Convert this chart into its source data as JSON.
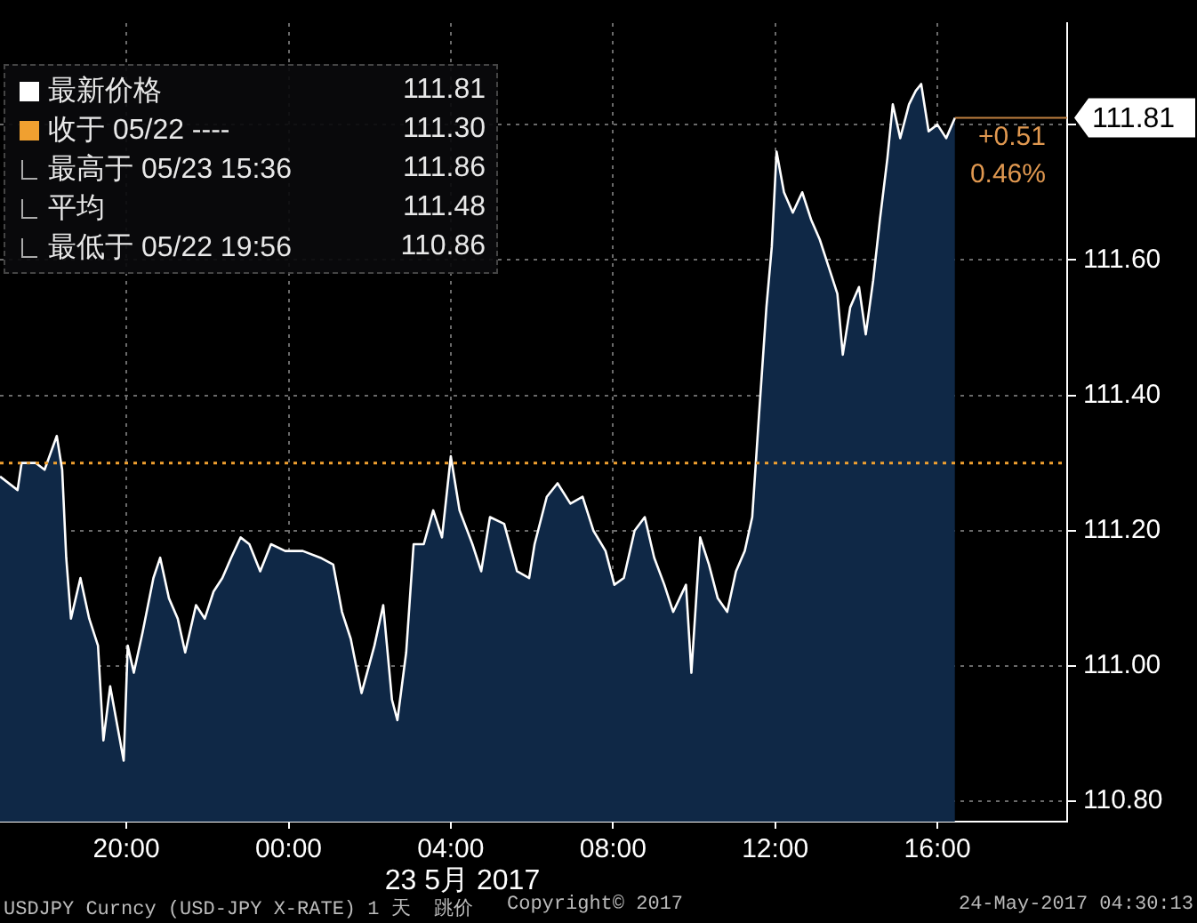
{
  "chart_data": {
    "type": "area",
    "legend": "top left",
    "grid": true,
    "xlim": [
      "2017-05-22T16:53",
      "2017-05-23T19:12"
    ],
    "ylim": [
      110.77,
      111.95
    ],
    "xticks": [
      {
        "value": "2017-05-22T20:00",
        "label": "20:00"
      },
      {
        "value": "2017-05-23T00:00",
        "label": "00:00"
      },
      {
        "value": "2017-05-23T04:00",
        "label": "04:00"
      },
      {
        "value": "2017-05-23T08:00",
        "label": "08:00"
      },
      {
        "value": "2017-05-23T12:00",
        "label": "12:00"
      },
      {
        "value": "2017-05-23T16:00",
        "label": "16:00"
      }
    ],
    "yticks": [
      {
        "value": 110.8,
        "label": "110.80"
      },
      {
        "value": 111,
        "label": "111.00"
      },
      {
        "value": 111.2,
        "label": "111.20"
      },
      {
        "value": 111.4,
        "label": "111.40"
      },
      {
        "value": 111.6,
        "label": "111.60"
      },
      {
        "value": 111.8,
        "label": null
      }
    ],
    "ref_lines": [
      {
        "axis": "y",
        "value": 111.3,
        "label": "收于 05/22 ----",
        "color": "#f0a030",
        "line_style": "dotted"
      }
    ],
    "annotations": [
      "111.81",
      "111.30",
      "最高于 05/23 15:36",
      "111.86",
      "平均",
      "111.48",
      "最低于 05/22 19:56",
      "110.86",
      "+0.51",
      "0.46%",
      "111.81",
      "23 5月 2017",
      "USDJPY Curncy (USD-JPY X-RATE) 1 天  跳价",
      "Copyright© 2017",
      "24-May-2017 04:30:13"
    ],
    "series": [
      {
        "name": "最新价格",
        "color": "#ffffff",
        "x": [
          "2017-05-22T16:53",
          "2017-05-22T17:19",
          "2017-05-22T17:25",
          "2017-05-22T17:46",
          "2017-05-22T17:59",
          "2017-05-22T18:17",
          "2017-05-22T18:25",
          "2017-05-22T18:31",
          "2017-05-22T18:38",
          "2017-05-22T18:52",
          "2017-05-22T19:05",
          "2017-05-22T19:18",
          "2017-05-22T19:26",
          "2017-05-22T19:36",
          "2017-05-22T19:56",
          "2017-05-22T20:02",
          "2017-05-22T20:11",
          "2017-05-22T20:24",
          "2017-05-22T20:40",
          "2017-05-22T20:50",
          "2017-05-22T21:03",
          "2017-05-22T21:16",
          "2017-05-22T21:27",
          "2017-05-22T21:43",
          "2017-05-22T21:56",
          "2017-05-22T22:09",
          "2017-05-22T22:22",
          "2017-05-22T22:35",
          "2017-05-22T22:49",
          "2017-05-22T23:02",
          "2017-05-22T23:18",
          "2017-05-22T23:34",
          "2017-05-22T23:55",
          "2017-05-23T00:21",
          "2017-05-23T00:47",
          "2017-05-23T01:06",
          "2017-05-23T01:19",
          "2017-05-23T01:32",
          "2017-05-23T01:48",
          "2017-05-23T02:07",
          "2017-05-23T02:20",
          "2017-05-23T02:33",
          "2017-05-23T02:41",
          "2017-05-23T02:54",
          "2017-05-23T03:05",
          "2017-05-23T03:20",
          "2017-05-23T03:34",
          "2017-05-23T03:47",
          "2017-05-23T04:00",
          "2017-05-23T04:13",
          "2017-05-23T04:32",
          "2017-05-23T04:45",
          "2017-05-23T04:58",
          "2017-05-23T05:19",
          "2017-05-23T05:38",
          "2017-05-23T05:56",
          "2017-05-23T06:04",
          "2017-05-23T06:22",
          "2017-05-23T06:38",
          "2017-05-23T06:57",
          "2017-05-23T07:15",
          "2017-05-23T07:31",
          "2017-05-23T07:49",
          "2017-05-23T08:02",
          "2017-05-23T08:16",
          "2017-05-23T08:32",
          "2017-05-23T08:47",
          "2017-05-23T09:01",
          "2017-05-23T09:16",
          "2017-05-23T09:29",
          "2017-05-23T09:48",
          "2017-05-23T09:56",
          "2017-05-23T10:09",
          "2017-05-23T10:22",
          "2017-05-23T10:35",
          "2017-05-23T10:49",
          "2017-05-23T11:02",
          "2017-05-23T11:15",
          "2017-05-23T11:26",
          "2017-05-23T11:36",
          "2017-05-23T11:47",
          "2017-05-23T11:55",
          "2017-05-23T12:02",
          "2017-05-23T12:13",
          "2017-05-23T12:26",
          "2017-05-23T12:40",
          "2017-05-23T12:53",
          "2017-05-23T13:06",
          "2017-05-23T13:19",
          "2017-05-23T13:32",
          "2017-05-23T13:40",
          "2017-05-23T13:51",
          "2017-05-23T14:04",
          "2017-05-23T14:14",
          "2017-05-23T14:25",
          "2017-05-23T14:35",
          "2017-05-23T14:46",
          "2017-05-23T14:54",
          "2017-05-23T15:05",
          "2017-05-23T15:18",
          "2017-05-23T15:28",
          "2017-05-23T15:36",
          "2017-05-23T15:47",
          "2017-05-23T16:00",
          "2017-05-23T16:13",
          "2017-05-23T16:26"
        ],
        "values": [
          111.28,
          111.26,
          111.3,
          111.3,
          111.29,
          111.34,
          111.29,
          111.16,
          111.07,
          111.13,
          111.07,
          111.03,
          110.89,
          110.97,
          110.86,
          111.03,
          110.99,
          111.05,
          111.13,
          111.16,
          111.1,
          111.07,
          111.02,
          111.09,
          111.07,
          111.11,
          111.13,
          111.16,
          111.19,
          111.18,
          111.14,
          111.18,
          111.17,
          111.17,
          111.16,
          111.15,
          111.08,
          111.04,
          110.96,
          111.03,
          111.09,
          110.95,
          110.92,
          111.02,
          111.18,
          111.18,
          111.23,
          111.19,
          111.31,
          111.23,
          111.18,
          111.14,
          111.22,
          111.21,
          111.14,
          111.13,
          111.18,
          111.25,
          111.27,
          111.24,
          111.25,
          111.2,
          111.17,
          111.12,
          111.13,
          111.2,
          111.22,
          111.16,
          111.12,
          111.08,
          111.12,
          110.99,
          111.19,
          111.15,
          111.1,
          111.08,
          111.14,
          111.17,
          111.22,
          111.37,
          111.53,
          111.62,
          111.76,
          111.7,
          111.67,
          111.7,
          111.66,
          111.63,
          111.59,
          111.55,
          111.46,
          111.53,
          111.56,
          111.49,
          111.57,
          111.66,
          111.75,
          111.83,
          111.78,
          111.83,
          111.85,
          111.86,
          111.79,
          111.8,
          111.78,
          111.81
        ]
      }
    ]
  }
}
